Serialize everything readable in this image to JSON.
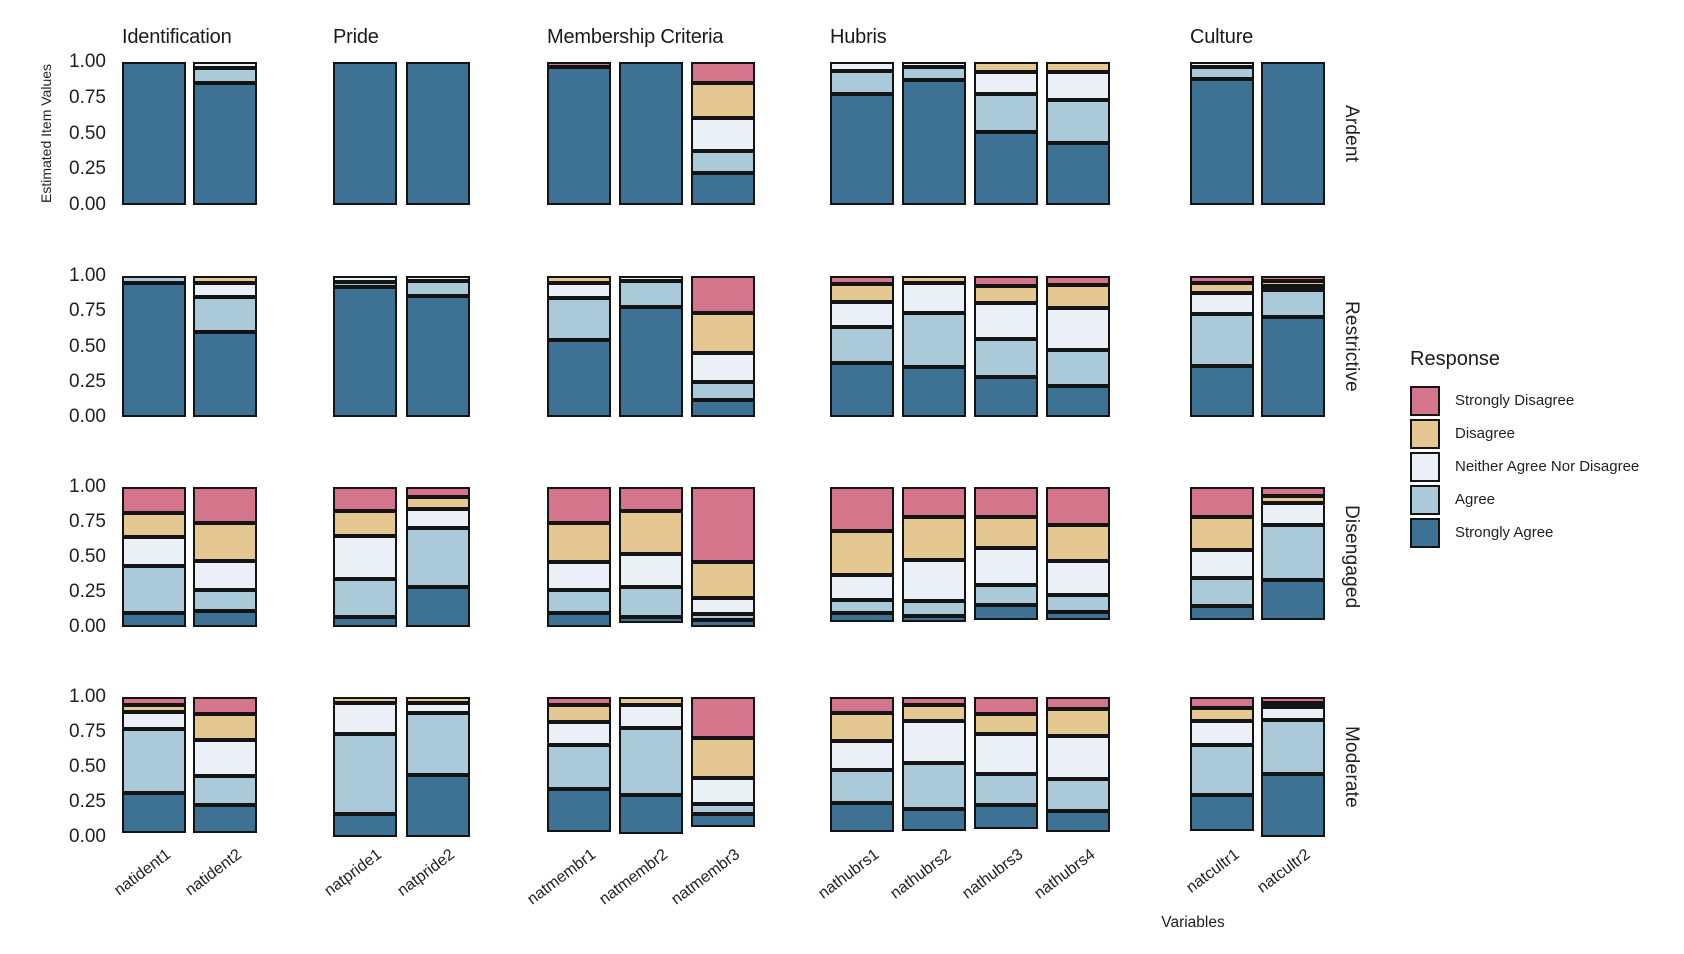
{
  "chart_data": {
    "type": "bar",
    "stacked": true,
    "title": "",
    "ylabel": "Estimated Item Values",
    "xlabel": "Variables",
    "ylim": [
      0,
      1
    ],
    "yticks": [
      "1.00",
      "0.75",
      "0.50",
      "0.25",
      "0.00"
    ],
    "grid": false,
    "legend_title": "Response",
    "legend_position": "right",
    "responses": [
      {
        "label": "Strongly Disagree",
        "color": "#d4758b"
      },
      {
        "label": "Disagree",
        "color": "#e4c791"
      },
      {
        "label": "Neither Agree Nor Disagree",
        "color": "#eaf0f5"
      },
      {
        "label": "Agree",
        "color": "#aac9d9"
      },
      {
        "label": "Strongly Agree",
        "color": "#3e7294"
      }
    ],
    "segment_order_top_to_bottom": [
      "Strongly Disagree",
      "Disagree",
      "Neither Agree Nor Disagree",
      "Agree",
      "Strongly Agree"
    ],
    "facet_rows": [
      "Ardent",
      "Restrictive",
      "Disengaged",
      "Moderate"
    ],
    "facet_columns": [
      {
        "label": "Identification",
        "variables": [
          "natident1",
          "natident2"
        ]
      },
      {
        "label": "Pride",
        "variables": [
          "natpride1",
          "natpride2"
        ]
      },
      {
        "label": "Membership Criteria",
        "variables": [
          "natmembr1",
          "natmembr2",
          "natmembr3"
        ]
      },
      {
        "label": "Hubris",
        "variables": [
          "nathubrs1",
          "nathubrs2",
          "nathubrs3",
          "nathubrs4"
        ]
      },
      {
        "label": "Culture",
        "variables": [
          "natcultr1",
          "natcultr2"
        ]
      }
    ],
    "values": {
      "Ardent": {
        "natident1": [
          0,
          0,
          0,
          0,
          1.0
        ],
        "natident2": [
          0,
          0,
          0.015,
          0.085,
          0.9
        ],
        "natpride1": [
          0,
          0,
          0,
          0,
          1.0
        ],
        "natpride2": [
          0,
          0,
          0,
          0,
          1.0
        ],
        "natmembr1": [
          0.01,
          0,
          0,
          0,
          0.99
        ],
        "natmembr2": [
          0,
          0,
          0,
          0,
          1.0
        ],
        "natmembr3": [
          0.14,
          0.25,
          0.24,
          0.14,
          0.23
        ],
        "nathubrs1": [
          0,
          0,
          0.035,
          0.145,
          0.82
        ],
        "nathubrs2": [
          0,
          0,
          0.01,
          0.07,
          0.92
        ],
        "nathubrs3": [
          0,
          0.045,
          0.14,
          0.27,
          0.545
        ],
        "nathubrs4": [
          0,
          0.05,
          0.19,
          0.3,
          0.46
        ],
        "natcultr1": [
          0,
          0,
          0.01,
          0.06,
          0.93
        ],
        "natcultr2": [
          0,
          0,
          0,
          0,
          1.0
        ]
      },
      "Restrictive": {
        "natident1": [
          0,
          0,
          0,
          0.025,
          0.975
        ],
        "natident2": [
          0,
          0.025,
          0.08,
          0.245,
          0.65
        ],
        "natpride1": [
          0,
          0,
          0.015,
          0.01,
          0.975
        ],
        "natpride2": [
          0,
          0,
          0.01,
          0.08,
          0.91
        ],
        "natmembr1": [
          0,
          0.025,
          0.09,
          0.3,
          0.585
        ],
        "natmembr2": [
          0,
          0,
          0.005,
          0.17,
          0.825
        ],
        "natmembr3": [
          0.27,
          0.3,
          0.21,
          0.11,
          0.11
        ],
        "nathubrs1": [
          0.035,
          0.11,
          0.18,
          0.265,
          0.41
        ],
        "nathubrs2": [
          0,
          0.025,
          0.21,
          0.4,
          0.365
        ],
        "nathubrs3": [
          0.05,
          0.11,
          0.26,
          0.28,
          0.3
        ],
        "nathubrs4": [
          0.04,
          0.16,
          0.31,
          0.27,
          0.22
        ],
        "natcultr1": [
          0.025,
          0.05,
          0.14,
          0.4,
          0.385
        ],
        "natcultr2": [
          0.01,
          0.005,
          0.005,
          0.19,
          0.79
        ]
      },
      "Disengaged": {
        "natident1": [
          0.18,
          0.17,
          0.21,
          0.36,
          0.08
        ],
        "natident2": [
          0.27,
          0.28,
          0.21,
          0.14,
          0.1
        ],
        "natpride1": [
          0.17,
          0.17,
          0.33,
          0.28,
          0.05
        ],
        "natpride2": [
          0.05,
          0.07,
          0.12,
          0.46,
          0.3
        ],
        "natmembr1": [
          0.27,
          0.29,
          0.2,
          0.16,
          0.08
        ],
        "natmembr2": [
          0.17,
          0.32,
          0.24,
          0.22,
          0.02
        ],
        "natmembr3": [
          0.59,
          0.27,
          0.1,
          0.015,
          0.025
        ],
        "nathubrs1": [
          0.33,
          0.34,
          0.17,
          0.08,
          0.04
        ],
        "nathubrs2": [
          0.22,
          0.32,
          0.31,
          0.09,
          0.02
        ],
        "nathubrs3": [
          0.22,
          0.22,
          0.28,
          0.13,
          0.09
        ],
        "nathubrs4": [
          0.28,
          0.27,
          0.25,
          0.11,
          0.03
        ],
        "natcultr1": [
          0.22,
          0.24,
          0.2,
          0.2,
          0.08
        ],
        "natcultr2": [
          0.04,
          0.03,
          0.15,
          0.42,
          0.3
        ]
      },
      "Moderate": {
        "natident1": [
          0.03,
          0.03,
          0.11,
          0.5,
          0.3
        ],
        "natident2": [
          0.11,
          0.18,
          0.27,
          0.21,
          0.2
        ],
        "natpride1": [
          0,
          0.02,
          0.21,
          0.62,
          0.15
        ],
        "natpride2": [
          0,
          0.015,
          0.05,
          0.465,
          0.47
        ],
        "natmembr1": [
          0.03,
          0.11,
          0.16,
          0.33,
          0.33
        ],
        "natmembr2": [
          0,
          0.035,
          0.15,
          0.51,
          0.28
        ],
        "natmembr3": [
          0.31,
          0.3,
          0.18,
          0.055,
          0.07
        ],
        "nathubrs1": [
          0.1,
          0.2,
          0.21,
          0.24,
          0.21
        ],
        "nathubrs2": [
          0.03,
          0.1,
          0.32,
          0.35,
          0.15
        ],
        "nathubrs3": [
          0.105,
          0.14,
          0.3,
          0.22,
          0.17
        ],
        "nathubrs4": [
          0.07,
          0.19,
          0.32,
          0.24,
          0.14
        ],
        "natcultr1": [
          0.06,
          0.07,
          0.17,
          0.38,
          0.27
        ],
        "natcultr2": [
          0.015,
          0.005,
          0.07,
          0.42,
          0.49
        ]
      }
    }
  }
}
